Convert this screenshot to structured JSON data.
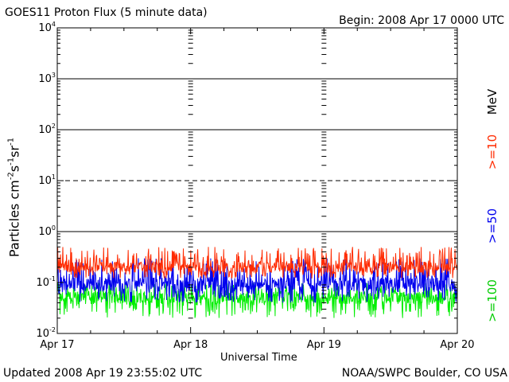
{
  "header": {
    "title": "GOES11 Proton Flux (5 minute data)",
    "begin": "Begin: 2008 Apr 17 0000 UTC"
  },
  "footer": {
    "updated": "Updated 2008 Apr 19 23:55:02 UTC",
    "credit": "NOAA/SWPC Boulder, CO USA"
  },
  "chart_data": {
    "type": "line",
    "title": "GOES11 Proton Flux (5 minute data)",
    "xlabel": "Universal Time",
    "ylabel_parts": [
      "Particles cm",
      "-2",
      "s",
      "-1",
      "sr",
      "-1"
    ],
    "x_ticks": [
      "Apr 17",
      "Apr 18",
      "Apr 19",
      "Apr 20"
    ],
    "y_scale": "log",
    "ylim": [
      0.01,
      10000
    ],
    "y_ticks": [
      {
        "base": "10",
        "exp": "-2"
      },
      {
        "base": "10",
        "exp": "-1"
      },
      {
        "base": "10",
        "exp": "0"
      },
      {
        "base": "10",
        "exp": "1"
      },
      {
        "base": "10",
        "exp": "2"
      },
      {
        "base": "10",
        "exp": "3"
      },
      {
        "base": "10",
        "exp": "4"
      }
    ],
    "grid": "horizontal lines at 1, 10 (dashed), 100, 1000",
    "energy_unit": "MeV",
    "series": [
      {
        "name": ">=10",
        "color": "#ff2a00",
        "baseline": 0.2,
        "range": [
          0.12,
          0.5
        ]
      },
      {
        "name": ">=50",
        "color": "#0000ee",
        "baseline": 0.09,
        "range": [
          0.04,
          0.3
        ]
      },
      {
        "name": ">=100",
        "color": "#00ee00",
        "baseline": 0.05,
        "range": [
          0.02,
          0.1
        ]
      }
    ]
  }
}
